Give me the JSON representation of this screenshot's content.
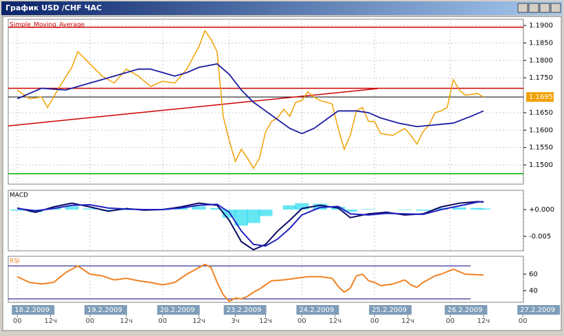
{
  "window": {
    "title": "График USD /CHF  ЧАС"
  },
  "chart_data": [
    {
      "type": "line",
      "title": "Simple_Moving_Average",
      "xlim": [
        -3,
        167.2
      ],
      "xticks": [
        {
          "value": 0,
          "label": "18.2.2009"
        },
        {
          "value": 24,
          "label": "19.2.2009"
        },
        {
          "value": 48,
          "label": "20.2.2009"
        },
        {
          "value": 70,
          "label": "23.2.2009"
        },
        {
          "value": 94,
          "label": "24.2.2009"
        },
        {
          "value": 118,
          "label": "25.2.2009"
        },
        {
          "value": 143,
          "label": "26.2.2009"
        },
        {
          "value": 167,
          "label": "27.2.2009"
        }
      ],
      "hour_ticks": [
        {
          "value": 0,
          "label": "00"
        },
        {
          "value": 11,
          "label": "12ч"
        },
        {
          "value": 24,
          "label": "00"
        },
        {
          "value": 36,
          "label": "12ч"
        },
        {
          "value": 48,
          "label": "00"
        },
        {
          "value": 60,
          "label": "12ч"
        },
        {
          "value": 72,
          "label": "3ч"
        },
        {
          "value": 82,
          "label": "12ч"
        },
        {
          "value": 94,
          "label": "00"
        },
        {
          "value": 105,
          "label": "12ч"
        },
        {
          "value": 118,
          "label": "00"
        },
        {
          "value": 129,
          "label": "12ч"
        },
        {
          "value": 143,
          "label": "00"
        },
        {
          "value": 154,
          "label": "12ч"
        },
        {
          "value": 167,
          "label": "00"
        }
      ],
      "ylim": [
        1.1445,
        1.1918
      ],
      "yticks": [
        {
          "value": 1.19,
          "label": "1.1900"
        },
        {
          "value": 1.185,
          "label": "1.1850"
        },
        {
          "value": 1.18,
          "label": "1.1800"
        },
        {
          "value": 1.175,
          "label": "1.1750"
        },
        {
          "value": 1.165,
          "label": "1.1650"
        },
        {
          "value": 1.16,
          "label": "1.1600"
        },
        {
          "value": 1.155,
          "label": "1.1550"
        },
        {
          "value": 1.15,
          "label": "1.1500"
        }
      ],
      "grid": true,
      "last_price": {
        "value": 1.1695,
        "label": "1.1695"
      },
      "hlines": [
        {
          "value": 1.1895,
          "color": "#cc0000"
        },
        {
          "value": 1.172,
          "color": "#cc0000"
        },
        {
          "value": 1.1695,
          "color": "#000000"
        },
        {
          "value": 1.1475,
          "color": "#00b000"
        }
      ],
      "trendline": {
        "color": "#cc0000",
        "x": [
          -3,
          119
        ],
        "values": [
          1.1612,
          1.1719
        ]
      },
      "series": [
        {
          "color": "#f0a000",
          "x": [
            0,
            4,
            8,
            10,
            14,
            18,
            20,
            24,
            28,
            32,
            36,
            40,
            44,
            48,
            52,
            56,
            60,
            62,
            64,
            66,
            68,
            70,
            72,
            74,
            76,
            78,
            80,
            82,
            84,
            86,
            88,
            90,
            92,
            94,
            96,
            98,
            100,
            104,
            106,
            108,
            110,
            112,
            114,
            116,
            118,
            120,
            124,
            128,
            130,
            132,
            134,
            136,
            138,
            140,
            142,
            144,
            146,
            148,
            152,
            154
          ],
          "values": [
            1.1715,
            1.169,
            1.1695,
            1.1665,
            1.1725,
            1.178,
            1.1825,
            1.179,
            1.1755,
            1.1735,
            1.1775,
            1.1755,
            1.1725,
            1.174,
            1.1735,
            1.1775,
            1.184,
            1.1885,
            1.186,
            1.1825,
            1.164,
            1.157,
            1.151,
            1.1545,
            1.152,
            1.149,
            1.152,
            1.1595,
            1.1625,
            1.1635,
            1.166,
            1.164,
            1.168,
            1.1685,
            1.171,
            1.1695,
            1.1685,
            1.1675,
            1.1605,
            1.1545,
            1.1585,
            1.1655,
            1.1665,
            1.1625,
            1.1625,
            1.159,
            1.1585,
            1.1605,
            1.1585,
            1.156,
            1.1595,
            1.1615,
            1.165,
            1.1655,
            1.1665,
            1.1745,
            1.1715,
            1.17,
            1.1705,
            1.1695
          ]
        },
        {
          "color": "#1a1aa0",
          "x": [
            0,
            8,
            16,
            24,
            32,
            40,
            44,
            48,
            52,
            56,
            60,
            66,
            70,
            74,
            78,
            82,
            86,
            90,
            94,
            98,
            102,
            106,
            112,
            116,
            120,
            126,
            132,
            138,
            144,
            150,
            154
          ],
          "values": [
            1.169,
            1.172,
            1.1715,
            1.1735,
            1.1755,
            1.1775,
            1.1775,
            1.1765,
            1.1755,
            1.1765,
            1.178,
            1.179,
            1.176,
            1.1715,
            1.168,
            1.1655,
            1.163,
            1.1605,
            1.159,
            1.1605,
            1.163,
            1.1655,
            1.1655,
            1.165,
            1.1635,
            1.162,
            1.161,
            1.1615,
            1.162,
            1.164,
            1.1655
          ]
        }
      ]
    },
    {
      "type": "macd",
      "title": "MACD",
      "ylim": [
        -0.0077,
        0.0036
      ],
      "yticks": [
        {
          "value": 0,
          "label": "+0.000"
        },
        {
          "value": -0.005,
          "label": "-0.005"
        }
      ],
      "x": [
        0,
        6,
        12,
        18,
        24,
        30,
        36,
        42,
        48,
        54,
        60,
        66,
        70,
        74,
        78,
        82,
        86,
        90,
        94,
        100,
        106,
        110,
        116,
        122,
        128,
        134,
        140,
        146,
        152,
        154
      ],
      "series": [
        {
          "color": "#0a0a60",
          "values": [
            0.0003,
            -0.0005,
            0.0005,
            0.0012,
            0.0005,
            -0.0003,
            0.0002,
            -0.0001,
            0,
            0.0005,
            0.0012,
            0.0008,
            -0.002,
            -0.006,
            -0.0075,
            -0.0065,
            -0.004,
            -0.002,
            0.0002,
            0.0008,
            0.0003,
            -0.0015,
            -0.0008,
            -0.0005,
            -0.001,
            -0.0008,
            0.0005,
            0.0012,
            0.0015,
            0.0014
          ]
        },
        {
          "color": "#2020c0",
          "values": [
            0.0002,
            -0.0002,
            0.0002,
            0.0008,
            0.0009,
            0.0003,
            0.0001,
            0,
            0,
            0.0003,
            0.0008,
            0.001,
            -0.0005,
            -0.004,
            -0.0065,
            -0.0068,
            -0.0055,
            -0.0035,
            -0.001,
            0.0004,
            0.0006,
            -0.0008,
            -0.001,
            -0.0007,
            -0.0008,
            -0.0009,
            0,
            0.0007,
            0.0014,
            0.0015
          ]
        }
      ],
      "histogram": {
        "color": "#40e0f0",
        "values": [
          -0.0002,
          -0.0005,
          0.0003,
          0.0006,
          0.0002,
          -0.0003,
          -0.0001,
          0,
          -0.0001,
          0.0003,
          0.0006,
          0.0003,
          -0.0015,
          -0.003,
          -0.0025,
          -0.0012,
          0,
          0.0008,
          0.0012,
          0.0011,
          0.0005,
          -0.0004,
          0.0001,
          0,
          -0.0001,
          -0.0002,
          0.0003,
          0.0004,
          0.0003,
          0.0002
        ]
      }
    },
    {
      "type": "rsi",
      "title": "RSI",
      "ylim": [
        25.8,
        81.7
      ],
      "yticks": [
        60,
        40
      ],
      "levels": [
        70,
        30
      ],
      "color": "#f08020",
      "overbought_color": "#d030d0",
      "oversold_color": "#30d030",
      "x": [
        0,
        4,
        8,
        12,
        16,
        20,
        24,
        28,
        32,
        36,
        40,
        44,
        48,
        52,
        56,
        60,
        62,
        64,
        66,
        68,
        70,
        72,
        74,
        76,
        78,
        80,
        84,
        88,
        92,
        96,
        100,
        104,
        106,
        108,
        110,
        112,
        114,
        116,
        118,
        120,
        124,
        128,
        130,
        132,
        134,
        136,
        138,
        140,
        144,
        148,
        154
      ],
      "values": [
        57,
        50,
        48,
        50,
        62,
        70,
        60,
        58,
        53,
        55,
        52,
        50,
        47,
        50,
        60,
        68,
        72,
        68,
        50,
        35,
        27,
        31,
        30,
        33,
        38,
        42,
        52,
        53,
        55,
        57,
        57,
        55,
        45,
        38,
        43,
        58,
        60,
        52,
        50,
        46,
        48,
        53,
        47,
        44,
        50,
        54,
        58,
        60,
        66,
        60,
        59
      ]
    }
  ]
}
